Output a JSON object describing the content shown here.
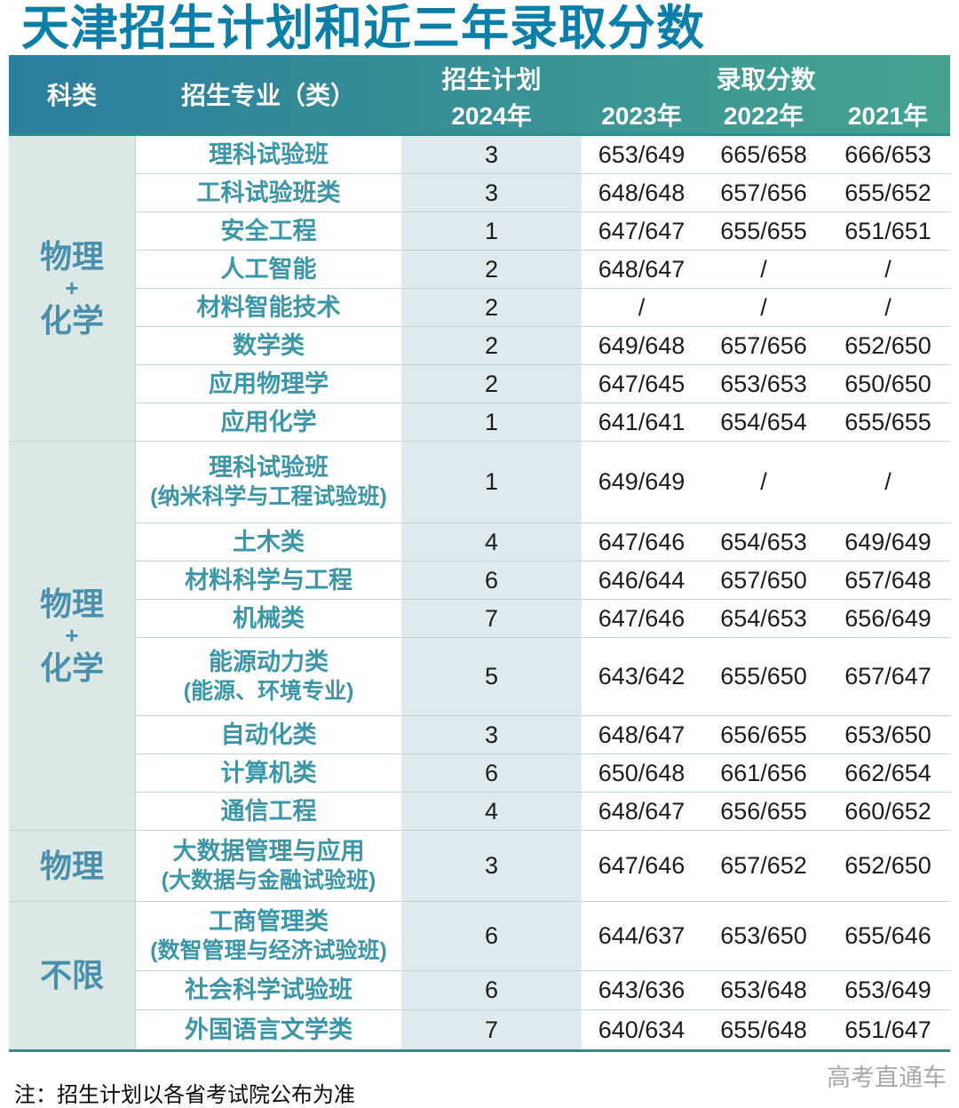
{
  "title": "天津招生计划和近三年录取分数",
  "table": {
    "headers": {
      "category": "科类",
      "major": "招生专业（类）",
      "plan": "招生计划",
      "plan_year": "2024年",
      "scores": "录取分数",
      "year_2023": "2023年",
      "year_2022": "2022年",
      "year_2021": "2021年"
    },
    "groups": [
      {
        "category": [
          "物理",
          "+",
          "化学"
        ],
        "rows": [
          {
            "major": "理科试验班",
            "plan": "3",
            "s2023": "653/649",
            "s2022": "665/658",
            "s2021": "666/653"
          },
          {
            "major": "工科试验班类",
            "plan": "3",
            "s2023": "648/648",
            "s2022": "657/656",
            "s2021": "655/652"
          },
          {
            "major": "安全工程",
            "plan": "1",
            "s2023": "647/647",
            "s2022": "655/655",
            "s2021": "651/651"
          },
          {
            "major": "人工智能",
            "plan": "2",
            "s2023": "648/647",
            "s2022": "/",
            "s2021": "/"
          },
          {
            "major": "材料智能技术",
            "plan": "2",
            "s2023": "/",
            "s2022": "/",
            "s2021": "/"
          },
          {
            "major": "数学类",
            "plan": "2",
            "s2023": "649/648",
            "s2022": "657/656",
            "s2021": "652/650"
          },
          {
            "major": "应用物理学",
            "plan": "2",
            "s2023": "647/645",
            "s2022": "653/653",
            "s2021": "650/650"
          },
          {
            "major": "应用化学",
            "plan": "1",
            "s2023": "641/641",
            "s2022": "654/654",
            "s2021": "655/655"
          }
        ]
      },
      {
        "category": [
          "物理",
          "+",
          "化学"
        ],
        "rows": [
          {
            "major": "理科试验班",
            "sub": "(纳米科学与工程试验班)",
            "plan": "1",
            "s2023": "649/649",
            "s2022": "/",
            "s2021": "/"
          },
          {
            "major": "土木类",
            "plan": "4",
            "s2023": "647/646",
            "s2022": "654/653",
            "s2021": "649/649"
          },
          {
            "major": "材料科学与工程",
            "plan": "6",
            "s2023": "646/644",
            "s2022": "657/650",
            "s2021": "657/648"
          },
          {
            "major": "机械类",
            "plan": "7",
            "s2023": "647/646",
            "s2022": "654/653",
            "s2021": "656/649"
          },
          {
            "major": "能源动力类",
            "sub": "(能源、环境专业)",
            "plan": "5",
            "s2023": "643/642",
            "s2022": "655/650",
            "s2021": "657/647"
          },
          {
            "major": "自动化类",
            "plan": "3",
            "s2023": "648/647",
            "s2022": "656/655",
            "s2021": "653/650"
          },
          {
            "major": "计算机类",
            "plan": "6",
            "s2023": "650/648",
            "s2022": "661/656",
            "s2021": "662/654"
          },
          {
            "major": "通信工程",
            "plan": "4",
            "s2023": "648/647",
            "s2022": "656/655",
            "s2021": "660/652"
          }
        ]
      },
      {
        "category": [
          "物理"
        ],
        "rows": [
          {
            "major": "大数据管理与应用",
            "sub": "(大数据与金融试验班)",
            "plan": "3",
            "s2023": "647/646",
            "s2022": "657/652",
            "s2021": "652/650"
          }
        ]
      },
      {
        "category": [
          "不限"
        ],
        "rows": [
          {
            "major": "工商管理类",
            "sub": "(数智管理与经济试验班)",
            "plan": "6",
            "s2023": "644/637",
            "s2022": "653/650",
            "s2021": "655/646"
          },
          {
            "major": "社会科学试验班",
            "plan": "6",
            "s2023": "643/636",
            "s2022": "653/648",
            "s2021": "653/649"
          },
          {
            "major": "外国语言文学类",
            "plan": "7",
            "s2023": "640/634",
            "s2022": "655/648",
            "s2021": "651/647"
          }
        ]
      }
    ]
  },
  "note": "注：招生计划以各省考试院公布为准",
  "watermark": "高考直通车"
}
